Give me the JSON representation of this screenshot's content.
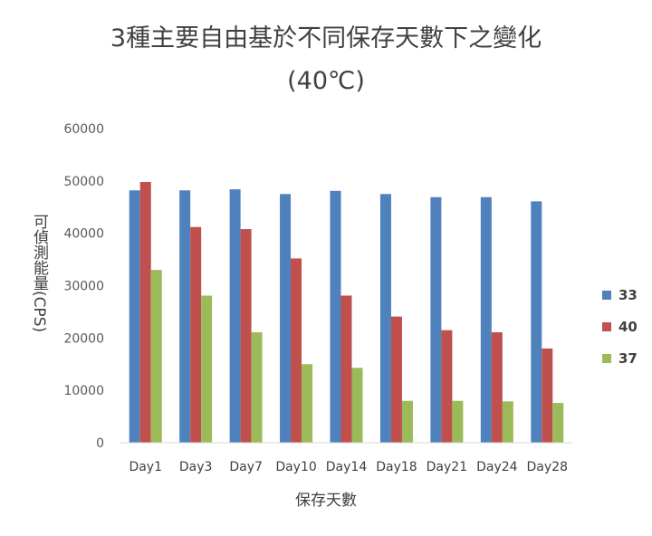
{
  "chart_data": {
    "type": "bar",
    "title": "3種主要自由基於不同保存天數下之變化",
    "subtitle": "(40℃)",
    "xlabel": "保存天數",
    "ylabel": "可偵測能量(CPS)",
    "categories": [
      "Day1",
      "Day3",
      "Day7",
      "Day10",
      "Day14",
      "Day18",
      "Day21",
      "Day24",
      "Day28"
    ],
    "ylim": [
      0,
      60000
    ],
    "yticks": [
      "0",
      "10000",
      "20000",
      "30000",
      "40000",
      "50000",
      "60000"
    ],
    "grid": false,
    "legend_position": "right",
    "series": [
      {
        "name": "33",
        "color": "#4F81BD",
        "values": [
          48200,
          48200,
          48400,
          47500,
          48100,
          47500,
          46900,
          46900,
          46100
        ]
      },
      {
        "name": "40",
        "color": "#C0504D",
        "values": [
          49800,
          41200,
          40800,
          35200,
          28100,
          24100,
          21500,
          21100,
          18000
        ]
      },
      {
        "name": "37",
        "color": "#9BBB59",
        "values": [
          33000,
          28100,
          21100,
          15000,
          14300,
          8000,
          8000,
          7900,
          7600
        ]
      }
    ]
  }
}
